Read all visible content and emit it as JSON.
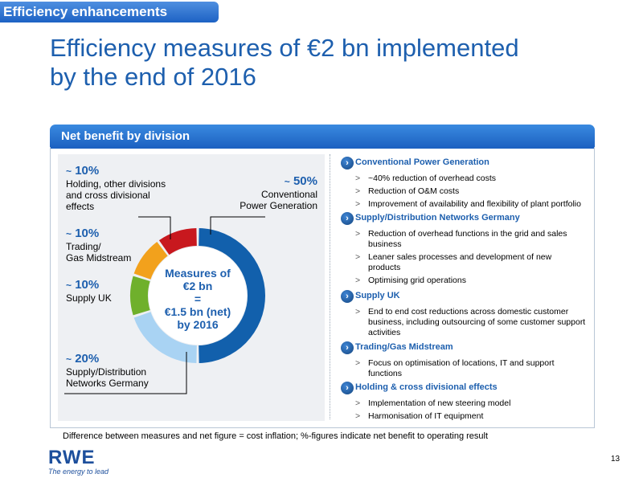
{
  "tag": "Efficiency enhancements",
  "title_lines": [
    "Efficiency measures of €2 bn implemented",
    "by the end of 2016"
  ],
  "panel_title": "Net benefit by division",
  "chart_center": [
    "Measures of",
    "€2 bn",
    "=",
    "€1.5 bn (net)",
    "by 2016"
  ],
  "chart_labels": {
    "holding": {
      "tilde": "~",
      "pct": "10%",
      "lines": [
        "Holding, other divisions",
        "and cross divisional",
        "effects"
      ]
    },
    "conventional": {
      "tilde": "~",
      "pct": "50%",
      "lines": [
        "Conventional",
        "Power Generation"
      ]
    },
    "trading": {
      "tilde": "~",
      "pct": "10%",
      "lines": [
        "Trading/",
        "Gas Midstream"
      ]
    },
    "supply_uk": {
      "tilde": "~",
      "pct": "10%",
      "lines": [
        "Supply UK"
      ]
    },
    "supply_de": {
      "tilde": "~",
      "pct": "20%",
      "lines": [
        "Supply/Distribution",
        "Networks Germany"
      ]
    }
  },
  "chart_data": {
    "type": "pie",
    "categories": [
      "Conventional Power Generation",
      "Supply/Distribution Networks Germany",
      "Supply UK",
      "Trading/Gas Midstream",
      "Holding, other divisions and cross divisional effects"
    ],
    "values": [
      50,
      20,
      10,
      10,
      10
    ],
    "colors": [
      "#1260ac",
      "#a9d3f3",
      "#6fb02c",
      "#f2a11c",
      "#c8181e"
    ]
  },
  "sections": [
    {
      "title": "Conventional Power Generation",
      "bullets": [
        "~40% reduction of overhead costs",
        "Reduction of O&M costs",
        "Improvement of availability and flexibility of plant portfolio"
      ]
    },
    {
      "title": "Supply/Distribution Networks Germany",
      "bullets": [
        "Reduction of overhead functions in the grid and sales business",
        "Leaner sales processes and development of new products",
        "Optimising grid operations"
      ]
    },
    {
      "title": "Supply UK",
      "bullets": [
        "End to end cost reductions across domestic customer business, including outsourcing of some customer support activities"
      ]
    },
    {
      "title": "Trading/Gas Midstream",
      "bullets": [
        "Focus on optimisation of locations, IT and support functions"
      ]
    },
    {
      "title": "Holding & cross divisional effects",
      "bullets": [
        "Implementation of new steering model",
        "Harmonisation of IT equipment"
      ]
    }
  ],
  "bullet_marker": ">",
  "section_icon": "chevron-right-icon",
  "footnote": "Difference between measures and net figure = cost inflation; %-figures indicate net benefit to operating result",
  "logo": "RWE",
  "slogan": "The energy to lead",
  "page_number": "13"
}
